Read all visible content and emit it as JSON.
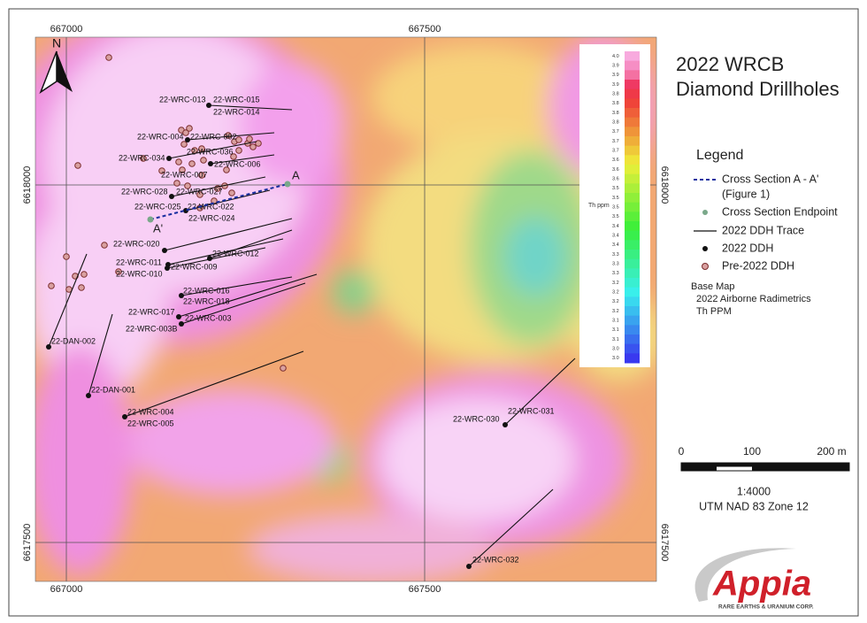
{
  "title": [
    "2022 WRCB",
    "Diamond Drillholes"
  ],
  "map": {
    "grid_labels": {
      "top": [
        "667000",
        "667500"
      ],
      "bottom": [
        "667000",
        "667500"
      ],
      "left": [
        "6618000",
        "6617500"
      ],
      "right": [
        "6618000",
        "6617500"
      ]
    },
    "north": "N",
    "section_labels": [
      "A",
      "A'"
    ],
    "drillholes": [
      "22-WRC-013",
      "22-WRC-015",
      "22-WRC-014",
      "22-WRC-004",
      "22-WRC-002",
      "22-WRC-036",
      "22-WRC-034",
      "22-WRC-006",
      "22-WRC-007",
      "22-WRC-028",
      "22-WRC-027",
      "22-WRC-025",
      "22-WRC-022",
      "22-WRC-024",
      "22-WRC-020",
      "22-WRC-012",
      "22-WRC-011",
      "22-WRC-009",
      "22-WRC-010",
      "22-WRC-016",
      "22-WRC-018",
      "22-WRC-017",
      "22-WRC-003",
      "22-WRC-003B",
      "22-DAN-002",
      "22-DAN-001",
      "22-WRC-004",
      "22-WRC-005",
      "22-WRC-030",
      "22-WRC-031",
      "22-WRC-032"
    ],
    "colorbar": {
      "title": "Th ppm",
      "labels": [
        "4.0",
        "3.9",
        "3.9",
        "3.9",
        "3.8",
        "3.8",
        "3.8",
        "3.8",
        "3.7",
        "3.7",
        "3.7",
        "3.6",
        "3.6",
        "3.6",
        "3.5",
        "3.5",
        "3.5",
        "3.5",
        "3.4",
        "3.4",
        "3.4",
        "3.3",
        "3.3",
        "3.3",
        "3.2",
        "3.2",
        "3.2",
        "3.2",
        "3.1",
        "3.1",
        "3.1",
        "3.0",
        "3.0"
      ]
    }
  },
  "legend": {
    "heading": "Legend",
    "items": [
      "Cross Section A - A'",
      "(Figure 1)",
      "Cross Section Endpoint",
      "2022 DDH Trace",
      "2022 DDH",
      "Pre-2022 DDH"
    ],
    "base_map": [
      "Base Map",
      "2022 Airborne Radimetrics",
      "Th PPM"
    ]
  },
  "scale": {
    "labels": [
      "0",
      "100",
      "200 m"
    ],
    "ratio": "1:4000",
    "projection": "UTM NAD 83 Zone 12"
  },
  "logo": {
    "name": "Appia",
    "tagline": "RARE EARTHS & URANIUM CORP."
  }
}
